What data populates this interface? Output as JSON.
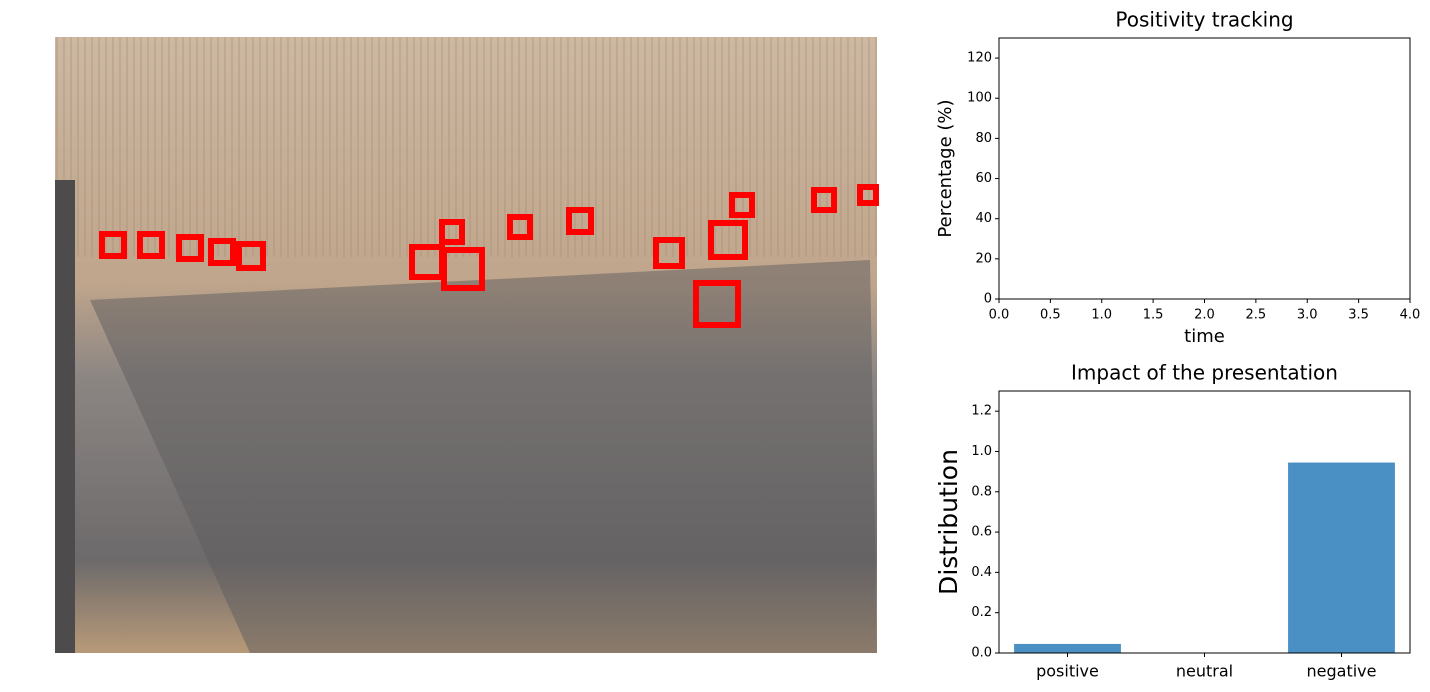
{
  "chart_data": [
    {
      "type": "line",
      "title": "Positivity tracking",
      "xlabel": "time",
      "ylabel": "Percentage (%)",
      "xlim": [
        0,
        4
      ],
      "xticks": [
        {
          "value": 0,
          "label": "0.0"
        },
        {
          "value": 0.5,
          "label": "0.5"
        },
        {
          "value": 1,
          "label": "1.0"
        },
        {
          "value": 1.5,
          "label": "1.5"
        },
        {
          "value": 2,
          "label": "2.0"
        },
        {
          "value": 2.5,
          "label": "2.5"
        },
        {
          "value": 3,
          "label": "3.0"
        },
        {
          "value": 3.5,
          "label": "3.5"
        },
        {
          "value": 4,
          "label": "4.0"
        }
      ],
      "ylim": [
        0,
        130
      ],
      "yticks": [
        0,
        20,
        40,
        60,
        80,
        100,
        120
      ]
    },
    {
      "type": "bar",
      "title": "Impact of the presentation",
      "ylabel": "Distribution",
      "categories": [
        "positive",
        "neutral",
        "negative"
      ],
      "values": [
        0.045,
        0,
        0.945
      ],
      "color": "#4a90c4",
      "ylim": [
        0,
        1.3
      ],
      "yticks": [
        {
          "value": 0,
          "label": "0.0"
        },
        {
          "value": 0.2,
          "label": "0.2"
        },
        {
          "value": 0.4,
          "label": "0.4"
        },
        {
          "value": 0.6,
          "label": "0.6"
        },
        {
          "value": 0.8,
          "label": "0.8"
        },
        {
          "value": 1,
          "label": "1.0"
        },
        {
          "value": 1.2,
          "label": "1.2"
        }
      ]
    }
  ]
}
